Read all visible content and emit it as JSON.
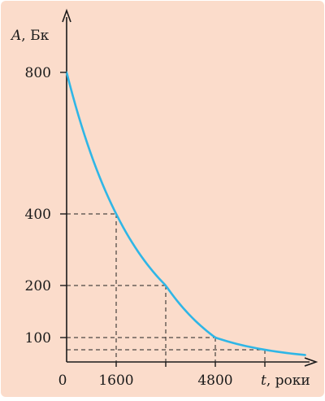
{
  "chart_data": {
    "type": "line",
    "title": "",
    "ylabel_symbol": "A",
    "ylabel_unit": ", Бк",
    "xlabel_symbol": "t",
    "xlabel_unit": ", роки",
    "origin_label": "0",
    "x_tick_labels": [
      {
        "x": 1600,
        "label": "1600"
      },
      {
        "x": 4800,
        "label": "4800"
      }
    ],
    "y_tick_labels": [
      {
        "y": 800,
        "label": "800"
      },
      {
        "y": 400,
        "label": "400"
      },
      {
        "y": 200,
        "label": "200"
      },
      {
        "y": 100,
        "label": "100"
      }
    ],
    "half_life": 1600,
    "initial_activity": 800,
    "series": [
      {
        "x": [
          0,
          800,
          1600,
          2400,
          3200,
          4000,
          4800,
          5600,
          6400,
          7200,
          7700
        ],
        "y": [
          800,
          566,
          400,
          283,
          200,
          141,
          100,
          71,
          50,
          35,
          29
        ]
      }
    ],
    "guide_points": [
      {
        "x": 1600,
        "y": 400
      },
      {
        "x": 3200,
        "y": 200
      },
      {
        "x": 4800,
        "y": 100
      },
      {
        "x": 6400,
        "y": 50
      }
    ],
    "xlim": [
      0,
      8000
    ],
    "ylim": [
      0,
      800
    ],
    "grid": false,
    "legend": "none",
    "colors": {
      "curve": "#2fb6e6",
      "axes": "#1a1a1a",
      "background": "#fbdccb"
    }
  }
}
